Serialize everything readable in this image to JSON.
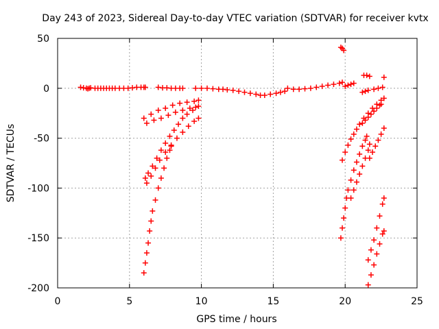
{
  "chart_data": {
    "type": "scatter",
    "title": "Day 243 of 2023, Sidereal Day-to-day VTEC variation (SDTVAR) for receiver kvtx",
    "xlabel": "GPS time / hours",
    "ylabel": "SDTVAR / TECUs",
    "xlim": [
      0,
      25
    ],
    "ylim": [
      -200,
      50
    ],
    "xticks": [
      0,
      5,
      10,
      15,
      20,
      25
    ],
    "yticks": [
      -200,
      -150,
      -100,
      -50,
      0,
      50
    ],
    "grid": true,
    "marker": "+",
    "color": "#ff0000",
    "series": [
      {
        "values": [
          [
            1.6,
            1
          ],
          [
            1.8,
            0.5
          ],
          [
            2.0,
            0
          ],
          [
            2.1,
            -0.5
          ],
          [
            2.2,
            0
          ],
          [
            2.3,
            0.5
          ]
        ]
      },
      {
        "values": [
          [
            2.6,
            0
          ],
          [
            2.8,
            0
          ],
          [
            3.0,
            0
          ],
          [
            3.2,
            0
          ],
          [
            3.4,
            0
          ],
          [
            3.6,
            0
          ],
          [
            3.8,
            0
          ],
          [
            4.0,
            0
          ],
          [
            4.3,
            0
          ],
          [
            4.6,
            0
          ],
          [
            4.9,
            0
          ],
          [
            5.2,
            0.5
          ],
          [
            5.5,
            1
          ],
          [
            5.8,
            1
          ],
          [
            6.0,
            1
          ],
          [
            6.1,
            1
          ]
        ]
      },
      {
        "values": [
          [
            7.0,
            1
          ],
          [
            7.3,
            0.5
          ],
          [
            7.6,
            0.5
          ],
          [
            7.9,
            0
          ],
          [
            8.2,
            0
          ],
          [
            8.5,
            0
          ],
          [
            8.7,
            0
          ]
        ]
      },
      {
        "values": [
          [
            9.6,
            0
          ],
          [
            10.0,
            0
          ],
          [
            10.4,
            0
          ],
          [
            10.8,
            -0.5
          ],
          [
            11.2,
            -1
          ],
          [
            11.5,
            -1
          ],
          [
            11.8,
            -1.5
          ],
          [
            12.2,
            -2
          ],
          [
            12.6,
            -3
          ],
          [
            13.0,
            -4
          ],
          [
            13.4,
            -5
          ],
          [
            13.8,
            -6
          ],
          [
            14.1,
            -7
          ],
          [
            14.4,
            -7
          ],
          [
            14.8,
            -6
          ],
          [
            15.2,
            -5
          ],
          [
            15.5,
            -4
          ],
          [
            15.8,
            -3
          ]
        ]
      },
      {
        "values": [
          [
            16.0,
            0
          ],
          [
            16.4,
            -1
          ],
          [
            16.8,
            -1
          ],
          [
            17.2,
            -0.5
          ],
          [
            17.6,
            0
          ],
          [
            18.0,
            1
          ],
          [
            18.4,
            2
          ],
          [
            18.8,
            3
          ],
          [
            19.2,
            4
          ],
          [
            19.6,
            5
          ],
          [
            19.8,
            6
          ]
        ]
      },
      {
        "values": [
          [
            19.7,
            41
          ],
          [
            19.8,
            40
          ],
          [
            19.9,
            38
          ]
        ]
      },
      {
        "values": [
          [
            20.0,
            2
          ],
          [
            20.2,
            3
          ],
          [
            20.4,
            4
          ],
          [
            20.6,
            5
          ]
        ]
      },
      {
        "values": [
          [
            21.3,
            13
          ],
          [
            21.5,
            13
          ],
          [
            21.7,
            12
          ]
        ]
      },
      {
        "values": [
          [
            22.7,
            11
          ]
        ]
      },
      {
        "values": [
          [
            21.2,
            -4
          ],
          [
            21.4,
            -3
          ],
          [
            21.6,
            -2
          ],
          [
            22.0,
            -1
          ],
          [
            22.3,
            0
          ],
          [
            22.6,
            1
          ]
        ]
      },
      {
        "values": [
          [
            6.0,
            -30
          ],
          [
            6.5,
            -26
          ],
          [
            7.0,
            -22
          ],
          [
            7.5,
            -20
          ],
          [
            8.0,
            -17
          ],
          [
            8.5,
            -15
          ],
          [
            9.0,
            -14
          ],
          [
            9.5,
            -13
          ],
          [
            9.8,
            -12
          ]
        ]
      },
      {
        "values": [
          [
            6.2,
            -35
          ],
          [
            6.7,
            -32
          ],
          [
            7.2,
            -30
          ],
          [
            7.7,
            -27
          ],
          [
            8.2,
            -24
          ],
          [
            8.7,
            -22
          ],
          [
            9.2,
            -20
          ],
          [
            9.6,
            -19
          ]
        ]
      },
      {
        "values": [
          [
            6.1,
            -90
          ],
          [
            6.3,
            -85
          ],
          [
            6.6,
            -78
          ],
          [
            6.9,
            -70
          ],
          [
            7.2,
            -62
          ],
          [
            7.5,
            -55
          ],
          [
            7.8,
            -48
          ],
          [
            8.1,
            -42
          ],
          [
            8.4,
            -36
          ],
          [
            8.7,
            -30
          ],
          [
            9.0,
            -26
          ],
          [
            9.4,
            -22
          ],
          [
            9.8,
            -18
          ]
        ]
      },
      {
        "values": [
          [
            6.2,
            -95
          ],
          [
            6.5,
            -88
          ],
          [
            6.8,
            -80
          ],
          [
            7.1,
            -72
          ],
          [
            7.5,
            -64
          ],
          [
            7.9,
            -57
          ],
          [
            8.3,
            -50
          ],
          [
            8.7,
            -44
          ],
          [
            9.1,
            -38
          ],
          [
            9.5,
            -33
          ],
          [
            9.8,
            -30
          ]
        ]
      },
      {
        "values": [
          [
            6.0,
            -185
          ],
          [
            6.1,
            -175
          ],
          [
            6.2,
            -165
          ],
          [
            6.3,
            -155
          ],
          [
            6.4,
            -143
          ],
          [
            6.5,
            -133
          ],
          [
            6.6,
            -123
          ],
          [
            6.8,
            -112
          ],
          [
            7.0,
            -100
          ],
          [
            7.2,
            -90
          ],
          [
            7.4,
            -80
          ],
          [
            7.6,
            -70
          ],
          [
            7.8,
            -62
          ],
          [
            7.9,
            -58
          ]
        ]
      },
      {
        "values": [
          [
            19.7,
            -150
          ],
          [
            19.8,
            -140
          ],
          [
            19.9,
            -130
          ],
          [
            20.0,
            -120
          ],
          [
            20.1,
            -110
          ],
          [
            20.2,
            -102
          ],
          [
            20.4,
            -92
          ],
          [
            20.6,
            -82
          ],
          [
            20.8,
            -74
          ],
          [
            21.0,
            -66
          ],
          [
            21.2,
            -58
          ],
          [
            21.4,
            -52
          ],
          [
            21.5,
            -48
          ]
        ]
      },
      {
        "values": [
          [
            19.8,
            -72
          ],
          [
            20.0,
            -64
          ],
          [
            20.2,
            -57
          ],
          [
            20.4,
            -51
          ],
          [
            20.6,
            -46
          ],
          [
            20.8,
            -41
          ],
          [
            21.0,
            -36
          ],
          [
            21.3,
            -30
          ],
          [
            21.6,
            -25
          ],
          [
            21.9,
            -20
          ],
          [
            22.2,
            -16
          ],
          [
            22.5,
            -12
          ],
          [
            22.7,
            -10
          ]
        ]
      },
      {
        "values": [
          [
            21.2,
            -35
          ],
          [
            21.4,
            -32
          ],
          [
            21.6,
            -29
          ],
          [
            21.8,
            -26
          ],
          [
            22.0,
            -23
          ],
          [
            22.2,
            -20
          ],
          [
            22.4,
            -17
          ],
          [
            22.5,
            -16
          ]
        ]
      },
      {
        "values": [
          [
            20.4,
            -110
          ],
          [
            20.6,
            -102
          ],
          [
            20.8,
            -94
          ],
          [
            21.0,
            -86
          ],
          [
            21.2,
            -78
          ],
          [
            21.4,
            -70
          ],
          [
            21.6,
            -62
          ],
          [
            21.7,
            -56
          ]
        ]
      },
      {
        "values": [
          [
            21.7,
            -70
          ],
          [
            21.9,
            -64
          ],
          [
            22.1,
            -58
          ],
          [
            22.3,
            -52
          ],
          [
            22.5,
            -46
          ],
          [
            22.7,
            -40
          ]
        ]
      },
      {
        "values": [
          [
            21.6,
            -172
          ],
          [
            21.8,
            -162
          ],
          [
            22.0,
            -152
          ],
          [
            22.2,
            -140
          ],
          [
            22.4,
            -128
          ],
          [
            22.6,
            -116
          ],
          [
            22.7,
            -110
          ]
        ]
      },
      {
        "values": [
          [
            21.6,
            -197
          ],
          [
            21.8,
            -187
          ],
          [
            22.0,
            -177
          ],
          [
            22.2,
            -166
          ],
          [
            22.4,
            -156
          ],
          [
            22.6,
            -146
          ],
          [
            22.7,
            -143
          ]
        ]
      }
    ]
  }
}
